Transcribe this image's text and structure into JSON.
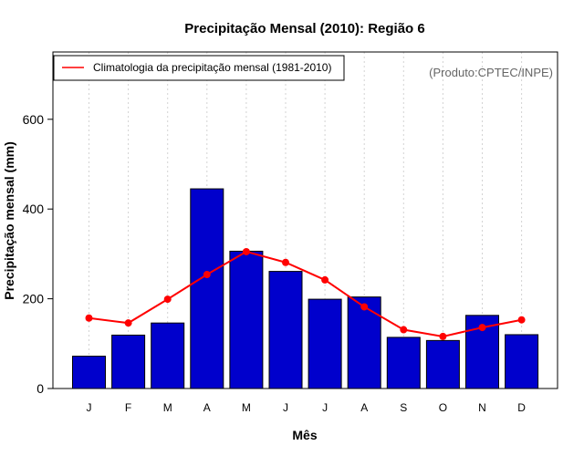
{
  "chart_data": {
    "type": "bar",
    "title": "Precipitação Mensal (2010): Região 6",
    "xlabel": "Mês",
    "ylabel": "Precipitação mensal (mm)",
    "ylim": [
      0,
      750
    ],
    "yticks": [
      0,
      200,
      400,
      600
    ],
    "categories": [
      "J",
      "F",
      "M",
      "A",
      "M",
      "J",
      "J",
      "A",
      "S",
      "O",
      "N",
      "D"
    ],
    "series": [
      {
        "name": "Precipitação mensal (2010)",
        "type": "bar",
        "color": "#0000CC",
        "values": [
          72,
          119,
          146,
          445,
          306,
          261,
          199,
          204,
          114,
          107,
          163,
          120
        ]
      },
      {
        "name": "Climatologia da precipitação mensal (1981-2010)",
        "type": "line",
        "color": "#FF0000",
        "values": [
          157,
          146,
          199,
          254,
          305,
          281,
          242,
          182,
          131,
          116,
          136,
          153
        ]
      }
    ],
    "legend": {
      "label": "Climatologia da precipitação mensal (1981-2010)",
      "position": "top-left"
    },
    "credit": "(Produto:CPTEC/INPE)",
    "grid": "vertical-dotted"
  }
}
